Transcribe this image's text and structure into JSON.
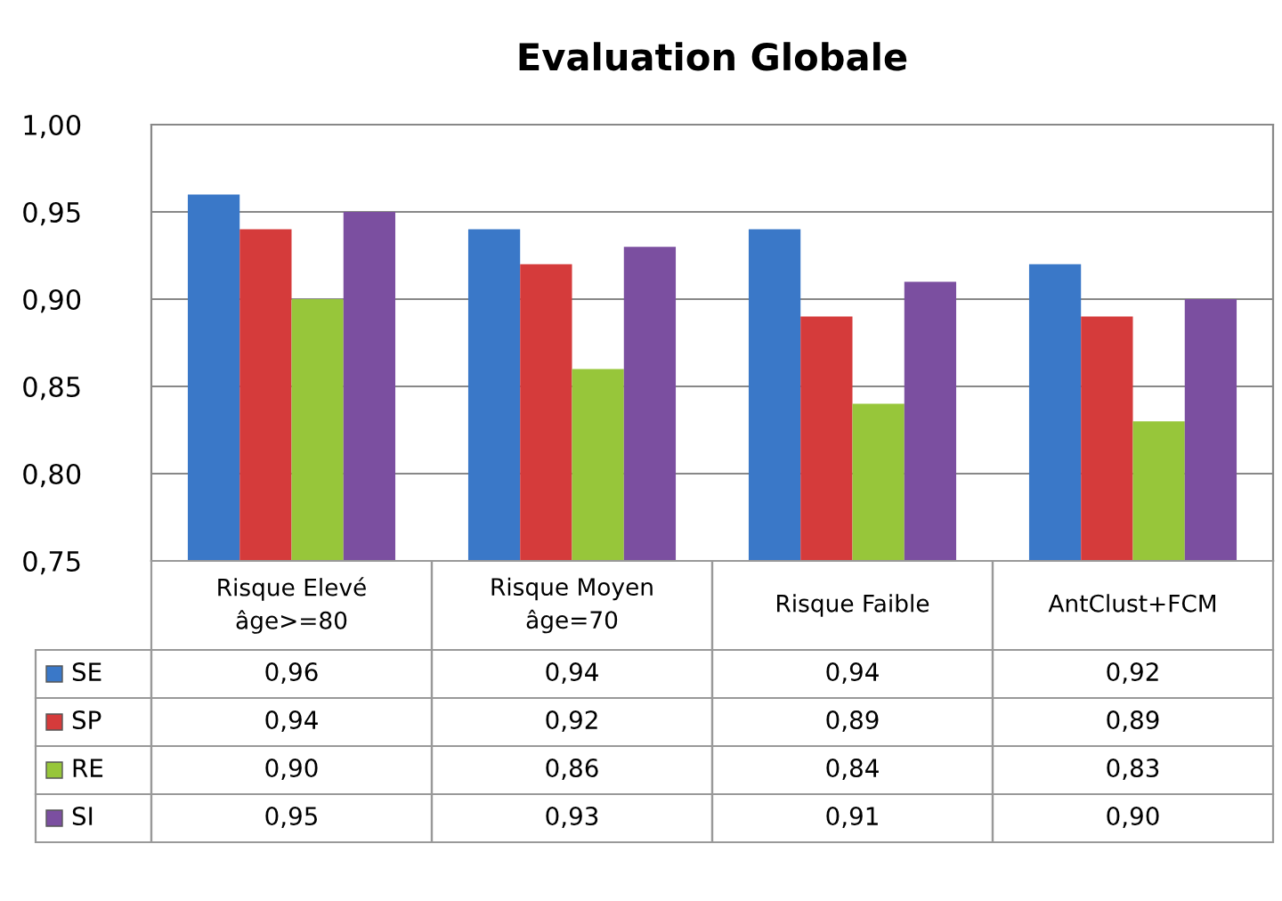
{
  "chart_data": {
    "type": "bar",
    "title": "Evaluation Globale",
    "categories": [
      "Risque Elevé\nâge>=80",
      "Risque Moyen\nâge=70",
      "Risque Faible",
      "AntClust+FCM"
    ],
    "series": [
      {
        "name": "SE",
        "color": "#3a78c8",
        "values": [
          0.96,
          0.94,
          0.94,
          0.92
        ],
        "value_labels": [
          "0,96",
          "0,94",
          "0,94",
          "0,92"
        ]
      },
      {
        "name": "SP",
        "color": "#d53b3b",
        "values": [
          0.94,
          0.92,
          0.89,
          0.89
        ],
        "value_labels": [
          "0,94",
          "0,92",
          "0,89",
          "0,89"
        ]
      },
      {
        "name": "RE",
        "color": "#97c63a",
        "values": [
          0.9,
          0.86,
          0.84,
          0.83
        ],
        "value_labels": [
          "0,90",
          "0,86",
          "0,84",
          "0,83"
        ]
      },
      {
        "name": "SI",
        "color": "#7b4fa0",
        "values": [
          0.95,
          0.93,
          0.91,
          0.9
        ],
        "value_labels": [
          "0,95",
          "0,93",
          "0,91",
          "0,90"
        ]
      }
    ],
    "ylim": [
      0.75,
      1.0
    ],
    "yticks": [
      {
        "value": 0.75,
        "label": "0,75"
      },
      {
        "value": 0.8,
        "label": "0,80"
      },
      {
        "value": 0.85,
        "label": "0,85"
      },
      {
        "value": 0.9,
        "label": "0,90"
      },
      {
        "value": 0.95,
        "label": "0,95"
      },
      {
        "value": 1.0,
        "label": "1,00"
      }
    ],
    "grid": "y",
    "legend": "bottom left"
  }
}
